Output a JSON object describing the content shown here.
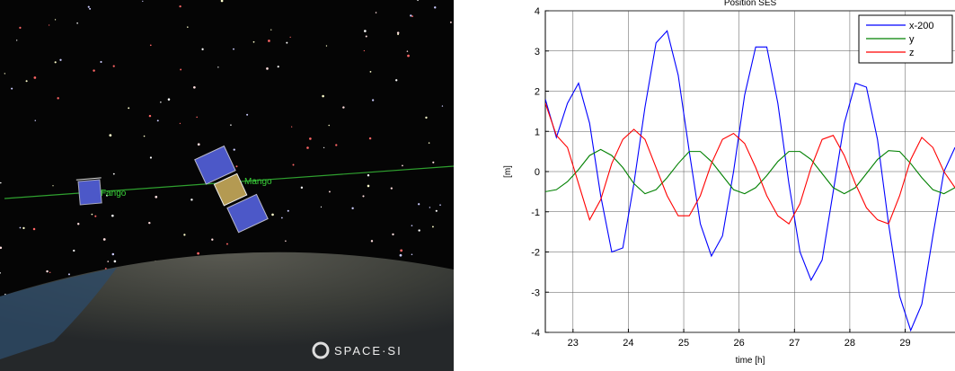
{
  "scene": {
    "labels": [
      "Fango",
      "Mango"
    ],
    "logo": "SPACE·SI"
  },
  "chart_data": {
    "type": "line",
    "title": "Position SES",
    "xlabel": "time [h]",
    "ylabel": "[m]",
    "x": [
      22.5,
      22.7,
      22.9,
      23.1,
      23.3,
      23.5,
      23.7,
      23.9,
      24.1,
      24.3,
      24.5,
      24.7,
      24.9,
      25.1,
      25.3,
      25.5,
      25.7,
      25.9,
      26.1,
      26.3,
      26.5,
      26.7,
      26.9,
      27.1,
      27.3,
      27.5,
      27.7,
      27.9,
      28.1,
      28.3,
      28.5,
      28.7,
      28.9,
      29.1,
      29.3,
      29.5,
      29.7,
      29.9
    ],
    "series": [
      {
        "name": "x-200",
        "color": "#0000ff",
        "values": [
          1.8,
          0.85,
          1.7,
          2.2,
          1.2,
          -0.6,
          -2.0,
          -1.9,
          -0.3,
          1.6,
          3.2,
          3.5,
          2.4,
          0.5,
          -1.3,
          -2.1,
          -1.6,
          0.0,
          1.9,
          3.1,
          3.1,
          1.7,
          -0.3,
          -2.0,
          -2.7,
          -2.2,
          -0.5,
          1.2,
          2.2,
          2.1,
          0.8,
          -1.3,
          -3.1,
          -3.95,
          -3.3,
          -1.6,
          0.0,
          0.6
        ]
      },
      {
        "name": "y",
        "color": "#008000",
        "values": [
          -0.5,
          -0.45,
          -0.25,
          0.05,
          0.4,
          0.55,
          0.4,
          0.1,
          -0.3,
          -0.55,
          -0.45,
          -0.15,
          0.2,
          0.5,
          0.5,
          0.25,
          -0.1,
          -0.45,
          -0.55,
          -0.4,
          -0.1,
          0.25,
          0.5,
          0.5,
          0.3,
          -0.05,
          -0.4,
          -0.55,
          -0.4,
          -0.05,
          0.3,
          0.52,
          0.5,
          0.2,
          -0.15,
          -0.45,
          -0.55,
          -0.4
        ]
      },
      {
        "name": "z",
        "color": "#ff0000",
        "values": [
          1.7,
          0.9,
          0.6,
          -0.3,
          -1.2,
          -0.7,
          0.2,
          0.8,
          1.05,
          0.8,
          0.1,
          -0.6,
          -1.1,
          -1.1,
          -0.6,
          0.2,
          0.8,
          0.95,
          0.7,
          0.1,
          -0.6,
          -1.1,
          -1.3,
          -0.8,
          0.1,
          0.8,
          0.9,
          0.4,
          -0.3,
          -0.9,
          -1.2,
          -1.3,
          -0.6,
          0.3,
          0.85,
          0.6,
          0.0,
          -0.4
        ]
      }
    ],
    "xlim": [
      22.5,
      29.9
    ],
    "ylim": [
      -4,
      4
    ],
    "xticks": [
      23,
      24,
      25,
      26,
      27,
      28,
      29
    ],
    "yticks": [
      -4,
      -3,
      -2,
      -1,
      0,
      1,
      2,
      3,
      4
    ],
    "grid": true,
    "legend": "upper right"
  }
}
